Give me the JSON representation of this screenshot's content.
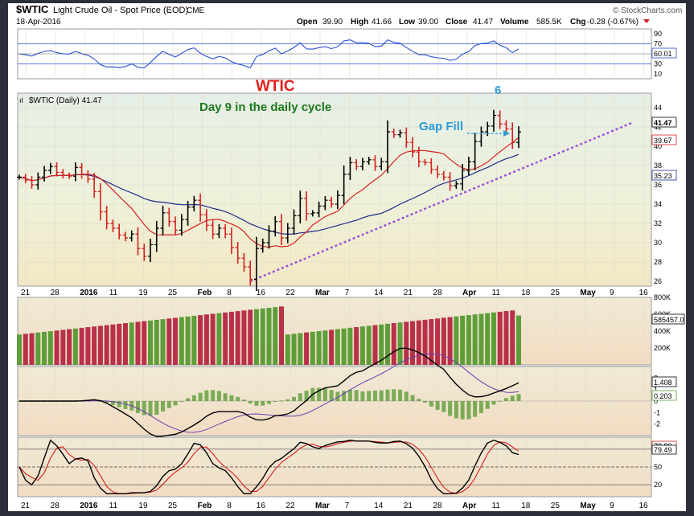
{
  "header": {
    "symbol": "$WTIC",
    "name": "Light Crude Oil - Spot Price (EOD)",
    "exchange": "CME",
    "date": "18-Apr-2016",
    "open_label": "Open",
    "open": "39.90",
    "high_label": "High",
    "high": "41.66",
    "low_label": "Low",
    "low": "39.00",
    "close_label": "Close",
    "close": "41.47",
    "volume_label": "Volume",
    "volume": "585.5K",
    "chg_label": "Chg",
    "chg": "-0.28 (-0.67%)",
    "watermark": "© StockCharts.com"
  },
  "panels": {
    "rsi": {
      "value_label": "60.01",
      "ticks": [
        "90",
        "70",
        "50",
        "30",
        "10"
      ]
    },
    "price": {
      "legend": "$WTIC (Daily) 41.47",
      "last_label": "41.47",
      "ma_short_label": "39.67",
      "ma_long_label": "35.23",
      "annotation_title": "WTIC",
      "annotation_subtitle": "Day 9 in the daily cycle",
      "annotation_gap": "Gap Fill",
      "annotation_count": "6",
      "ticks": [
        "44",
        "42",
        "40",
        "38",
        "36",
        "34",
        "32",
        "30",
        "28",
        "26"
      ]
    },
    "volume": {
      "value_label": "585457.0",
      "ticks": [
        "800K",
        "600K",
        "400K",
        "200K"
      ]
    },
    "macd": {
      "macd_label": "1.408",
      "hist_label": "0.203",
      "ticks": [
        "2",
        "1",
        "0",
        "-1",
        "-2"
      ]
    },
    "stoch": {
      "k_label": "79.49",
      "d_label": "79.80",
      "ticks": [
        "80",
        "50",
        "20"
      ]
    }
  },
  "x_axis_labels": [
    "21",
    "28",
    "2016",
    "11",
    "19",
    "25",
    "Feb",
    "8",
    "16",
    "22",
    "Mar",
    "7",
    "14",
    "21",
    "28",
    "Apr",
    "11",
    "18",
    "25",
    "May",
    "9",
    "16"
  ],
  "colors": {
    "up": "#000000",
    "down": "#d42020",
    "vol_up": "#5e9e3a",
    "vol_down": "#b8304a",
    "ma_short": "#d42020",
    "ma_long": "#1f2c8c",
    "trendline": "#9b4fd8",
    "rsi": "#2a4fd0",
    "annotation_title": "#e0201c",
    "annotation_subtitle": "#1e7a1e",
    "annotation_gap": "#2a9ad8"
  },
  "chart_data": {
    "type": "candlestick",
    "title": "$WTIC Light Crude Oil - Spot Price (EOD) CME",
    "ohlc_close": [
      36.8,
      36.5,
      36.0,
      36.8,
      37.5,
      37.9,
      37.3,
      37.0,
      36.9,
      37.8,
      37.1,
      36.6,
      35.3,
      33.2,
      32.0,
      31.5,
      30.8,
      30.5,
      30.9,
      29.4,
      28.6,
      29.8,
      31.5,
      33.1,
      32.2,
      31.3,
      32.4,
      33.7,
      34.4,
      32.9,
      31.8,
      30.9,
      31.5,
      30.9,
      29.5,
      28.4,
      27.5,
      26.2,
      29.4,
      30.0,
      31.2,
      32.2,
      30.5,
      31.5,
      32.8,
      34.6,
      33.0,
      33.1,
      33.8,
      34.4,
      34.0,
      34.9,
      37.1,
      38.3,
      37.9,
      38.4,
      38.6,
      37.9,
      38.4,
      41.5,
      41.2,
      41.4,
      40.4,
      39.4,
      38.4,
      38.3,
      37.6,
      37.1,
      36.8,
      35.9,
      36.1,
      37.5,
      38.4,
      40.5,
      41.5,
      42.1,
      43.2,
      42.3,
      41.8,
      40.4,
      41.5
    ],
    "current": {
      "open": 39.9,
      "high": 41.66,
      "low": 39.0,
      "close": 41.47
    },
    "ylim": [
      25.5,
      45.5
    ],
    "y_ticks": [
      26,
      28,
      30,
      32,
      34,
      36,
      38,
      40,
      42,
      44
    ],
    "ma_short_last": 39.67,
    "ma_long_last": 35.23,
    "rsi": {
      "last": 60.01,
      "ylim": [
        0,
        100
      ],
      "levels": [
        70,
        50,
        30
      ]
    },
    "volume": {
      "last": 585457,
      "ylim": [
        0,
        800000
      ]
    },
    "macd": {
      "macd": 1.408,
      "histogram": 0.203,
      "ylim": [
        -3,
        3
      ]
    },
    "stochastic": {
      "k": 79.49,
      "d": 79.8,
      "ylim": [
        0,
        100
      ],
      "levels": [
        80,
        50,
        20
      ]
    }
  }
}
